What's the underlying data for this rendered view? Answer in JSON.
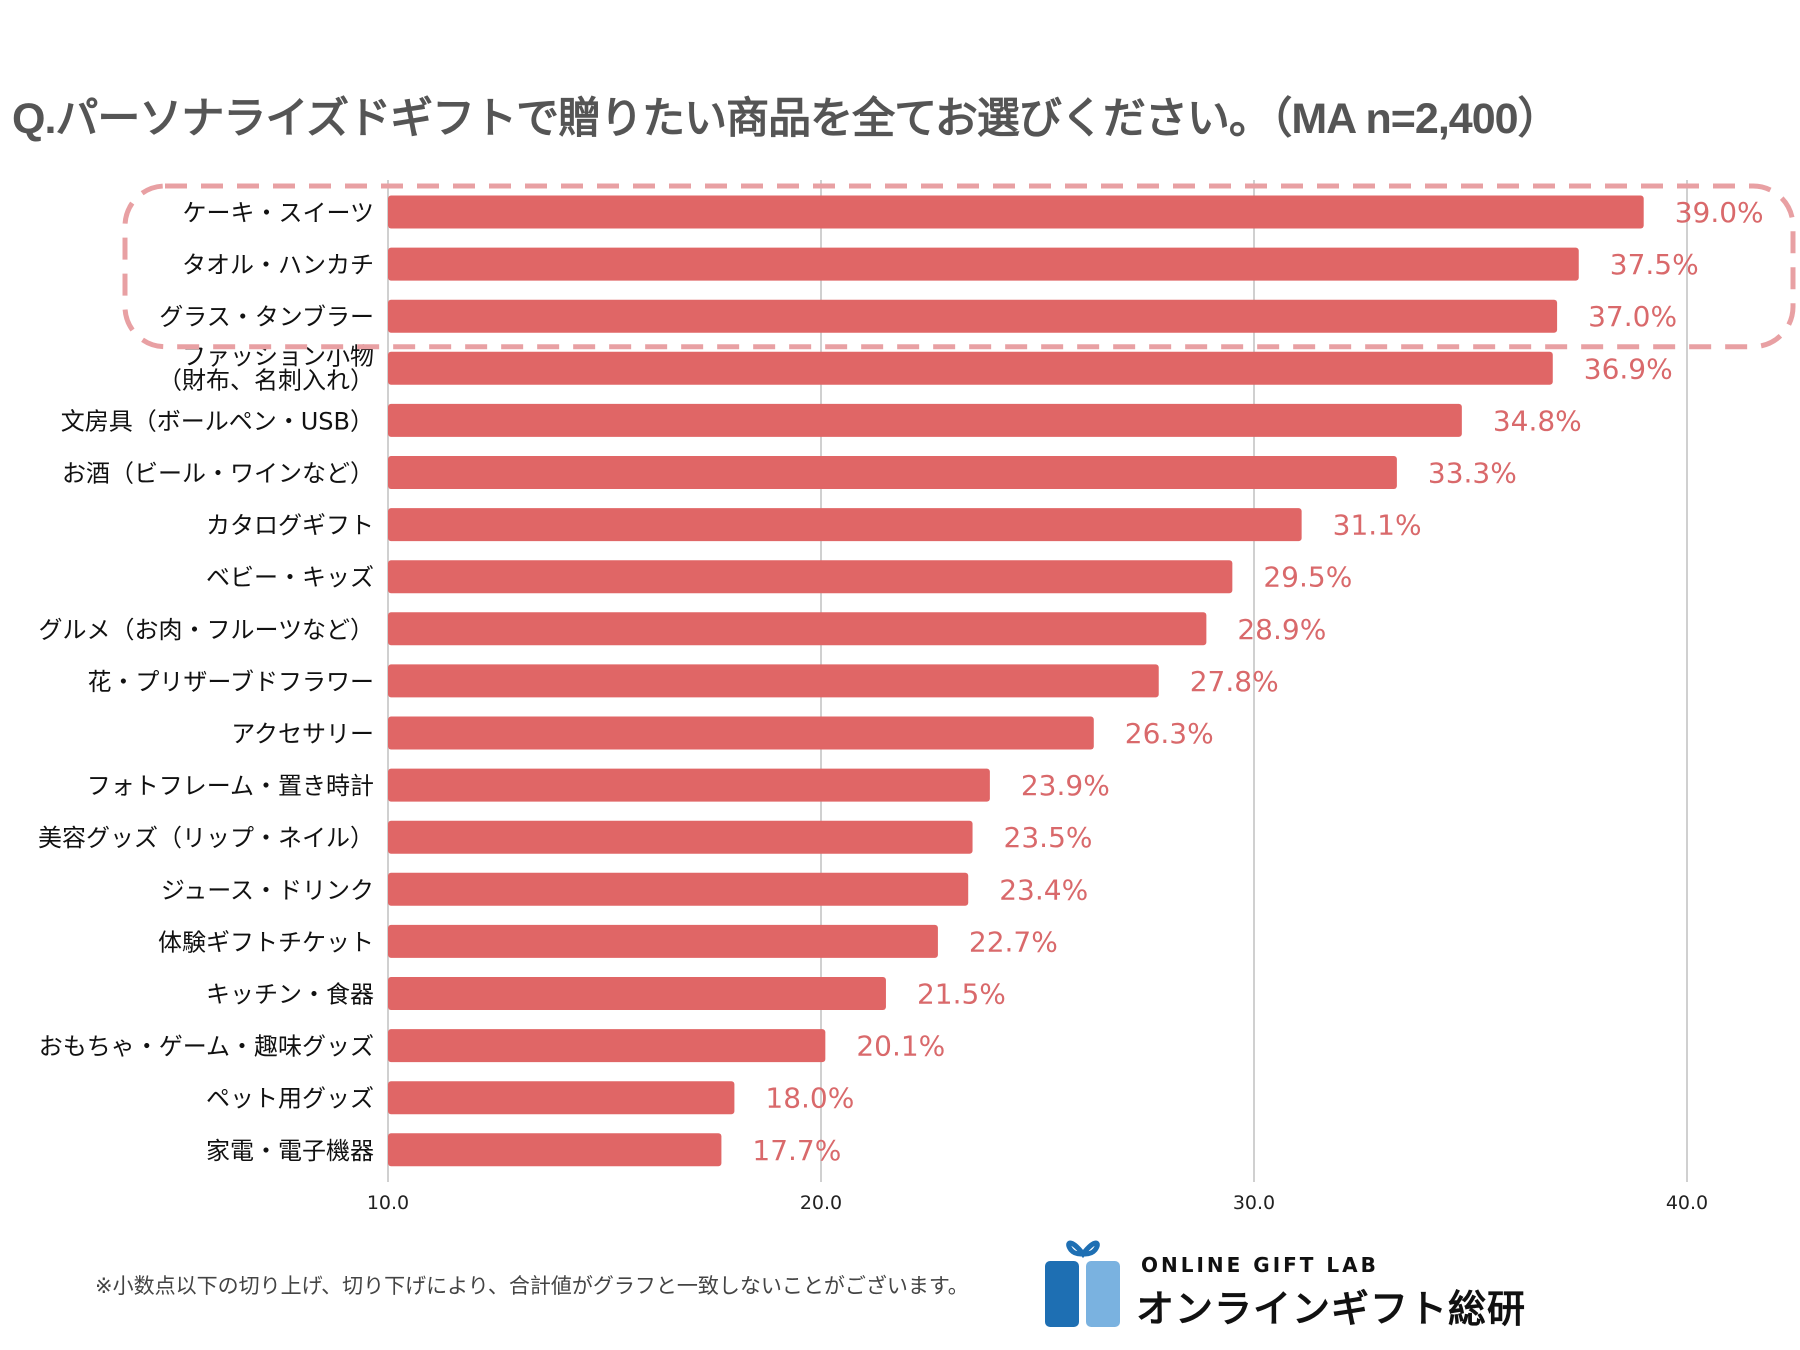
{
  "title": "Q.パーソナライズドギフトで贈りたい商品を全てお選びください。（MA n=2,400）",
  "colors": {
    "bar": "#E06666",
    "value_label": "#D9696B",
    "highlight_box": "#E8A0A3",
    "gridline": "#D0D0D0",
    "title": "#555555",
    "logo_dark": "#1E6FB3",
    "logo_light": "#7AB2E0"
  },
  "chart_data": {
    "type": "bar",
    "orientation": "horizontal",
    "title": "Q.パーソナライズドギフトで贈りたい商品を全てお選びください。（MA n=2,400）",
    "xlabel": "",
    "ylabel": "",
    "xlim": [
      10,
      40
    ],
    "x_ticks": [
      "10.0",
      "20.0",
      "30.0",
      "40.0"
    ],
    "x_tick_values": [
      10,
      20,
      30,
      40
    ],
    "grid": "vertical",
    "value_suffix": "%",
    "highlighted_top_n": 3,
    "categories": [
      "ケーキ・スイーツ",
      "タオル・ハンカチ",
      "グラス・タンブラー",
      "ファッション小物\n（財布、名刺入れ）",
      "文房具（ボールペン・USB）",
      "お酒（ビール・ワインなど）",
      "カタログギフト",
      "ベビー・キッズ",
      "グルメ（お肉・フルーツなど）",
      "花・プリザーブドフラワー",
      "アクセサリー",
      "フォトフレーム・置き時計",
      "美容グッズ（リップ・ネイル）",
      "ジュース・ドリンク",
      "体験ギフトチケット",
      "キッチン・食器",
      "おもちゃ・ゲーム・趣味グッズ",
      "ペット用グッズ",
      "家電・電子機器"
    ],
    "values": [
      39.0,
      37.5,
      37.0,
      36.9,
      34.8,
      33.3,
      31.1,
      29.5,
      28.9,
      27.8,
      26.3,
      23.9,
      23.5,
      23.4,
      22.7,
      21.5,
      20.1,
      18.0,
      17.7
    ],
    "value_labels": [
      "39.0%",
      "37.5%",
      "37.0%",
      "36.9%",
      "34.8%",
      "33.3%",
      "31.1%",
      "29.5%",
      "28.9%",
      "27.8%",
      "26.3%",
      "23.9%",
      "23.5%",
      "23.4%",
      "22.7%",
      "21.5%",
      "20.1%",
      "18.0%",
      "17.7%"
    ]
  },
  "footnote": "※小数点以下の切り上げ、切り下げにより、合計値がグラフと一致しないことがございます。",
  "logo": {
    "icon": "gift-box-icon",
    "text_en": "ONLINE GIFT LAB",
    "text_jp": "オンラインギフト総研"
  }
}
